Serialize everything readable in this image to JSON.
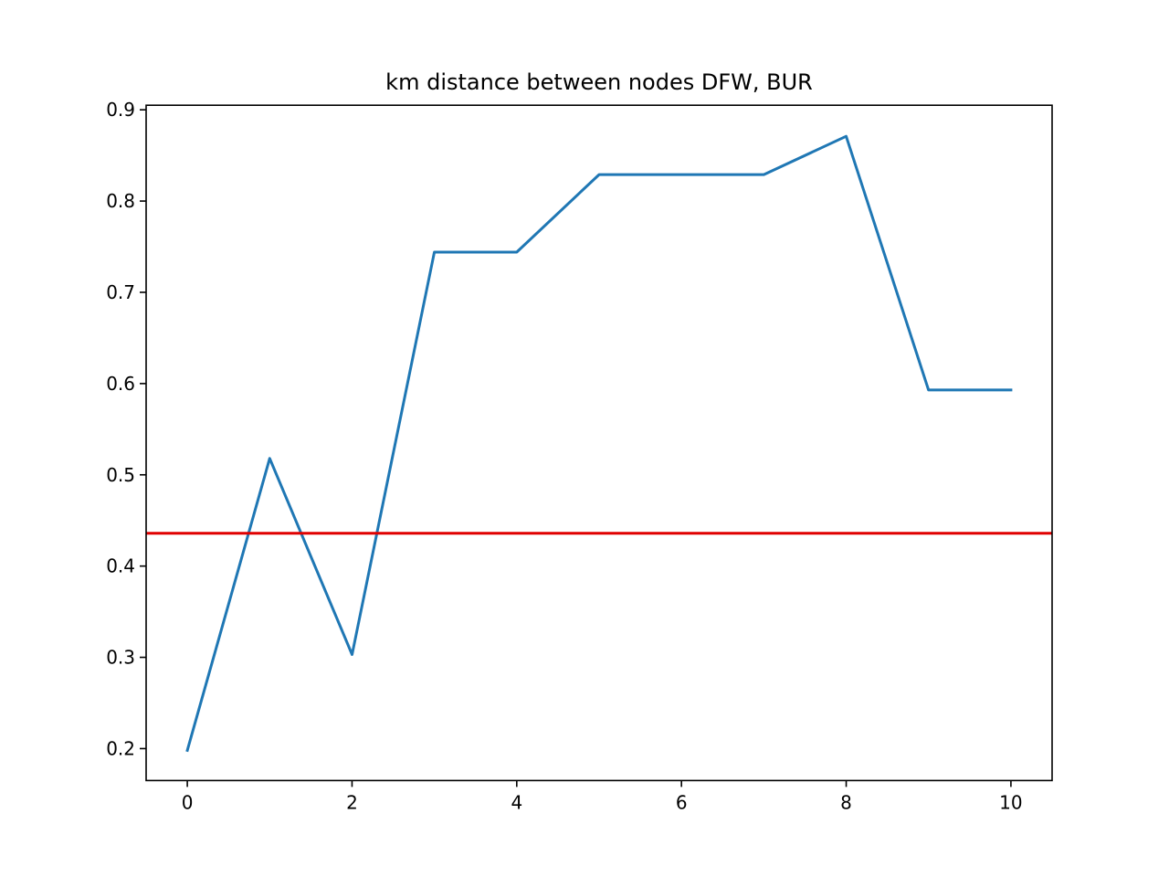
{
  "chart_data": {
    "type": "line",
    "title": "km distance between nodes DFW, BUR",
    "xlabel": "",
    "ylabel": "",
    "xlim": [
      -0.5,
      10.5
    ],
    "ylim": [
      0.165,
      0.905
    ],
    "xticks": [
      0,
      2,
      4,
      6,
      8,
      10
    ],
    "yticks": [
      0.2,
      0.3,
      0.4,
      0.5,
      0.6,
      0.7,
      0.8,
      0.9
    ],
    "xtick_labels": [
      "0",
      "2",
      "4",
      "6",
      "8",
      "10"
    ],
    "ytick_labels": [
      "0.2",
      "0.3",
      "0.4",
      "0.5",
      "0.6",
      "0.7",
      "0.8",
      "0.9"
    ],
    "grid": false,
    "series": [
      {
        "color": "#1f77b4",
        "x": [
          0,
          1,
          2,
          3,
          4,
          5,
          6,
          7,
          8,
          9,
          10
        ],
        "values": [
          0.198,
          0.518,
          0.303,
          0.744,
          0.744,
          0.829,
          0.829,
          0.829,
          0.871,
          0.593,
          0.593
        ]
      }
    ],
    "hlines": [
      {
        "y": 0.436,
        "color": "#e00000"
      }
    ]
  }
}
